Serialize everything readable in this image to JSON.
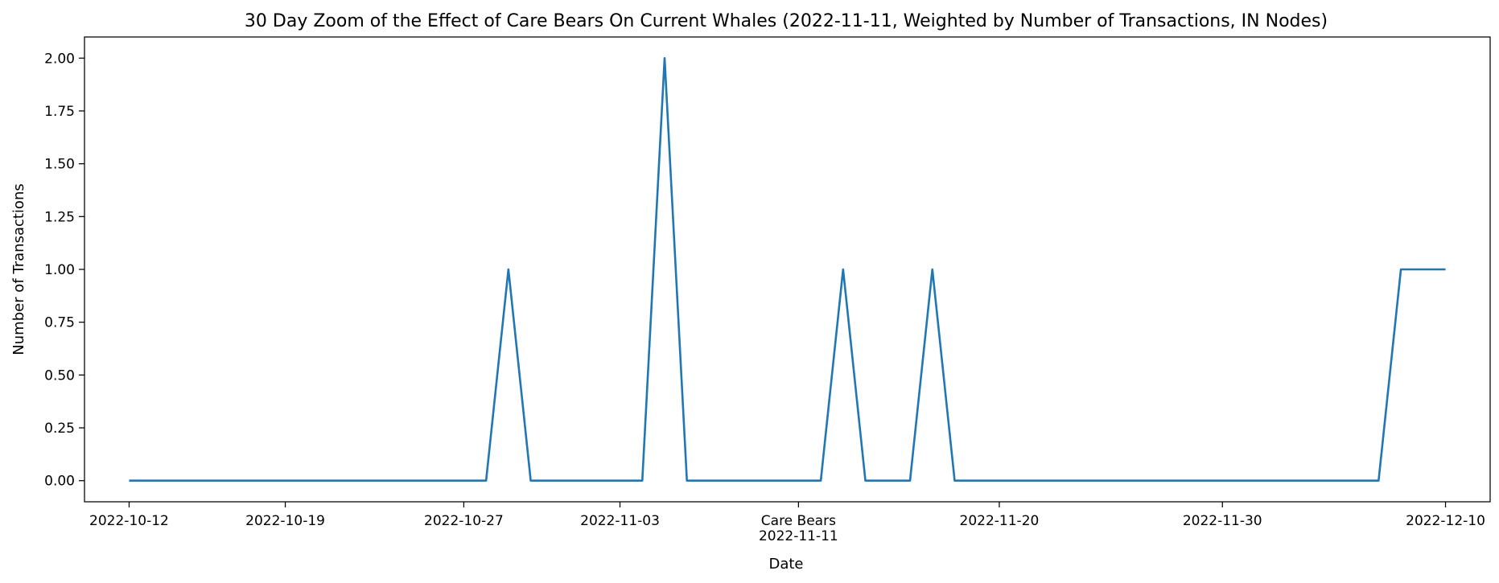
{
  "chart_data": {
    "type": "line",
    "title": "30 Day Zoom of the Effect of Care Bears On Current Whales (2022-11-11, Weighted by Number of Transactions, IN Nodes)",
    "xlabel": "Date",
    "ylabel": "Number of Transactions",
    "xlim": [
      "2022-10-10",
      "2022-12-12"
    ],
    "ylim": [
      -0.1,
      2.1
    ],
    "grid": false,
    "line_color": "#1f77b4",
    "x_ticks": [
      {
        "date": "2022-10-12",
        "label": "2022-10-12"
      },
      {
        "date": "2022-10-19",
        "label": "2022-10-19"
      },
      {
        "date": "2022-10-27",
        "label": "2022-10-27"
      },
      {
        "date": "2022-11-03",
        "label": "2022-11-03"
      },
      {
        "date": "2022-11-11",
        "label": "Care Bears",
        "label2": "2022-11-11"
      },
      {
        "date": "2022-11-20",
        "label": "2022-11-20"
      },
      {
        "date": "2022-11-30",
        "label": "2022-11-30"
      },
      {
        "date": "2022-12-10",
        "label": "2022-12-10"
      }
    ],
    "y_ticks": [
      {
        "value": 0.0,
        "label": "0.00"
      },
      {
        "value": 0.25,
        "label": "0.25"
      },
      {
        "value": 0.5,
        "label": "0.50"
      },
      {
        "value": 0.75,
        "label": "0.75"
      },
      {
        "value": 1.0,
        "label": "1.00"
      },
      {
        "value": 1.25,
        "label": "1.25"
      },
      {
        "value": 1.5,
        "label": "1.50"
      },
      {
        "value": 1.75,
        "label": "1.75"
      },
      {
        "value": 2.0,
        "label": "2.00"
      }
    ],
    "series": [
      {
        "x": [
          "2022-10-12",
          "2022-10-28",
          "2022-10-29",
          "2022-10-30",
          "2022-11-04",
          "2022-11-05",
          "2022-11-06",
          "2022-11-12",
          "2022-11-13",
          "2022-11-14",
          "2022-11-16",
          "2022-11-17",
          "2022-11-18",
          "2022-12-07",
          "2022-12-08",
          "2022-12-10"
        ],
        "y": [
          0,
          0,
          1,
          0,
          0,
          2,
          0,
          0,
          1,
          0,
          0,
          1,
          0,
          0,
          1,
          1
        ]
      }
    ]
  }
}
